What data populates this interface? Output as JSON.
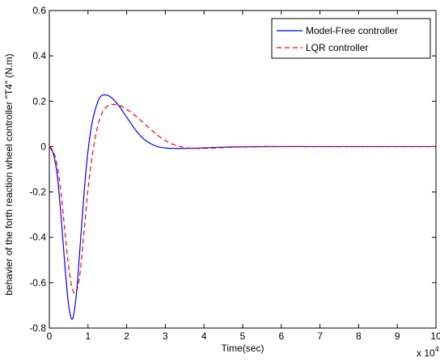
{
  "chart_data": {
    "type": "line",
    "title": "",
    "xlabel": "Time(sec)",
    "ylabel": "behavier of the forth reaction wheel controller \"T4\" (N.m)",
    "x_multiplier_label": "x 10",
    "x_multiplier_exponent": "4",
    "xlim": [
      0,
      10
    ],
    "ylim": [
      -0.8,
      0.6
    ],
    "xticks": [
      0,
      1,
      2,
      3,
      4,
      5,
      6,
      7,
      8,
      9,
      10
    ],
    "xtick_labels": [
      "0",
      "1",
      "2",
      "3",
      "4",
      "5",
      "6",
      "7",
      "8",
      "9",
      "10"
    ],
    "yticks": [
      -0.8,
      -0.6,
      -0.4,
      -0.2,
      0,
      0.2,
      0.4,
      0.6
    ],
    "ytick_labels": [
      "-0.8",
      "-0.6",
      "-0.4",
      "-0.2",
      "0",
      "0.2",
      "0.4",
      "0.6"
    ],
    "grid": false,
    "legend_position": "top-right",
    "series": [
      {
        "name": "Model-Free controller",
        "color": "#0000ff",
        "dash": "solid",
        "x": [
          0,
          0.1,
          0.2,
          0.3,
          0.4,
          0.5,
          0.6,
          0.7,
          0.8,
          0.9,
          1.0,
          1.1,
          1.2,
          1.3,
          1.4,
          1.5,
          1.6,
          1.7,
          1.8,
          2.0,
          2.2,
          2.4,
          2.6,
          2.8,
          3.0,
          3.2,
          3.5,
          3.8,
          4.2,
          4.6,
          5.0,
          5.5,
          6.0,
          7.0,
          8.0,
          9.0,
          10.0
        ],
        "y": [
          0,
          -0.03,
          -0.12,
          -0.3,
          -0.52,
          -0.7,
          -0.76,
          -0.65,
          -0.43,
          -0.2,
          -0.02,
          0.1,
          0.17,
          0.215,
          0.228,
          0.226,
          0.217,
          0.2,
          0.18,
          0.13,
          0.08,
          0.04,
          0.015,
          0.0,
          -0.006,
          -0.008,
          -0.008,
          -0.007,
          -0.004,
          -0.002,
          -0.001,
          0,
          0,
          0,
          0,
          0,
          0
        ]
      },
      {
        "name": "LQR controller",
        "color": "#ff0000",
        "dash": "dashed",
        "x": [
          0,
          0.1,
          0.2,
          0.3,
          0.4,
          0.5,
          0.6,
          0.7,
          0.8,
          0.9,
          1.0,
          1.1,
          1.2,
          1.3,
          1.4,
          1.5,
          1.6,
          1.7,
          1.8,
          1.9,
          2.0,
          2.2,
          2.4,
          2.6,
          2.8,
          3.0,
          3.2,
          3.5,
          3.8,
          4.2,
          4.6,
          5.0,
          5.5,
          6.0,
          7.0,
          8.0,
          9.0,
          10.0
        ],
        "y": [
          0,
          -0.02,
          -0.08,
          -0.2,
          -0.37,
          -0.53,
          -0.63,
          -0.64,
          -0.55,
          -0.37,
          -0.19,
          -0.05,
          0.05,
          0.12,
          0.16,
          0.178,
          0.185,
          0.186,
          0.182,
          0.175,
          0.165,
          0.14,
          0.11,
          0.08,
          0.05,
          0.027,
          0.01,
          -0.004,
          -0.008,
          -0.007,
          -0.004,
          -0.002,
          -0.001,
          0,
          0,
          0,
          0,
          0
        ]
      }
    ]
  }
}
